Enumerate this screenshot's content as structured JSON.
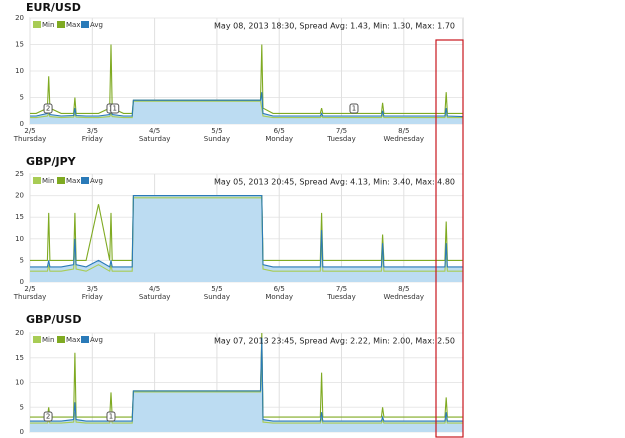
{
  "chart_data": [
    {
      "type": "line",
      "title": "EUR/USD",
      "info": "May 08, 2013 18:30, Spread Avg: 1.43, Min: 1.30, Max: 1.70",
      "fill_color": "#bcdcf2",
      "grid": true,
      "x": [
        0,
        0.1,
        0.28,
        0.3,
        0.32,
        0.5,
        0.7,
        0.72,
        0.74,
        0.9,
        1.1,
        1.28,
        1.3,
        1.32,
        1.5,
        1.64,
        1.66,
        3.7,
        3.72,
        3.74,
        3.9,
        4.2,
        4.5,
        4.66,
        4.68,
        4.7,
        5.0,
        5.3,
        5.64,
        5.66,
        5.68,
        6.0,
        6.3,
        6.66,
        6.68,
        6.7,
        6.95
      ],
      "xlim": [
        0,
        6.95
      ],
      "xticks": [
        {
          "value": 0,
          "label": "2/5"
        },
        {
          "value": 1,
          "label": "3/5"
        },
        {
          "value": 2,
          "label": "4/5"
        },
        {
          "value": 3,
          "label": "5/5"
        },
        {
          "value": 4,
          "label": "6/5"
        },
        {
          "value": 5,
          "label": "7/5"
        },
        {
          "value": 6,
          "label": "8/5"
        }
      ],
      "xtick_days": [
        "Thursday",
        "Friday",
        "Saturday",
        "Sunday",
        "Monday",
        "Tuesday",
        "Wednesday"
      ],
      "ylim": [
        0,
        20
      ],
      "yticks": [
        0,
        5,
        10,
        15,
        20
      ],
      "series": [
        {
          "name": "Min",
          "color": "#a8cc55",
          "values": [
            1.2,
            1.2,
            1.5,
            2,
            1.4,
            1.2,
            1.3,
            2,
            1.3,
            1.2,
            1.2,
            1.4,
            2,
            1.4,
            1.2,
            1.2,
            4.3,
            4.3,
            3,
            1.5,
            1.2,
            1.2,
            1.2,
            1.2,
            1.5,
            1.2,
            1.2,
            1.2,
            1.2,
            1.8,
            1.2,
            1.2,
            1.2,
            1.2,
            2,
            1.2,
            1.2
          ]
        },
        {
          "name": "Max",
          "color": "#7faa22",
          "values": [
            2,
            2,
            3,
            9,
            3,
            2,
            2,
            5,
            2,
            2,
            2,
            3,
            15,
            3,
            2,
            2,
            4.5,
            4.5,
            15,
            3,
            2,
            2,
            2,
            2,
            3,
            2,
            2,
            2,
            2,
            4,
            2,
            2,
            2,
            2,
            6,
            2,
            2
          ]
        },
        {
          "name": "Avg",
          "color": "#2a7ab8",
          "values": [
            1.5,
            1.5,
            2,
            3,
            1.8,
            1.5,
            1.6,
            3,
            1.6,
            1.5,
            1.5,
            1.8,
            3,
            1.8,
            1.5,
            1.5,
            4.5,
            4.5,
            6,
            2,
            1.5,
            1.5,
            1.5,
            1.5,
            2,
            1.5,
            1.5,
            1.5,
            1.5,
            2.5,
            1.5,
            1.5,
            1.5,
            1.5,
            3,
            1.5,
            1.4
          ]
        }
      ],
      "flags": [
        {
          "x": 0.29,
          "text": "2"
        },
        {
          "x": 1.3,
          "text": "1"
        },
        {
          "x": 1.36,
          "text": "1"
        },
        {
          "x": 5.2,
          "text": "1"
        }
      ]
    },
    {
      "type": "line",
      "title": "GBP/JPY",
      "info": "May 05, 2013 20:45, Spread Avg: 4.13, Min: 3.40, Max: 4.80",
      "fill_color": "#bcdcf2",
      "grid": true,
      "x": [
        0,
        0.1,
        0.28,
        0.3,
        0.32,
        0.5,
        0.7,
        0.72,
        0.74,
        0.9,
        1.1,
        1.28,
        1.3,
        1.32,
        1.5,
        1.64,
        1.66,
        3.7,
        3.72,
        3.74,
        3.9,
        4.2,
        4.5,
        4.66,
        4.68,
        4.7,
        5.0,
        5.3,
        5.64,
        5.66,
        5.68,
        6.0,
        6.3,
        6.66,
        6.68,
        6.7,
        6.95
      ],
      "xlim": [
        0,
        6.95
      ],
      "xticks": [
        {
          "value": 0,
          "label": "2/5"
        },
        {
          "value": 1,
          "label": "3/5"
        },
        {
          "value": 2,
          "label": "4/5"
        },
        {
          "value": 3,
          "label": "5/5"
        },
        {
          "value": 4,
          "label": "6/5"
        },
        {
          "value": 5,
          "label": "7/5"
        },
        {
          "value": 6,
          "label": "8/5"
        }
      ],
      "xtick_days": [
        "Thursday",
        "Friday",
        "Saturday",
        "Sunday",
        "Monday",
        "Tuesday",
        "Wednesday"
      ],
      "ylim": [
        0,
        25
      ],
      "yticks": [
        0,
        5,
        10,
        15,
        20,
        25
      ],
      "series": [
        {
          "name": "Min",
          "color": "#a8cc55",
          "values": [
            2.5,
            2.5,
            2.5,
            4,
            2.5,
            2.5,
            3,
            8,
            3,
            2.5,
            4,
            2.5,
            4,
            2.5,
            2.5,
            2.5,
            19.5,
            19.5,
            19.5,
            3,
            2.5,
            2.5,
            2.5,
            2.5,
            9,
            2.5,
            2.5,
            2.5,
            2.5,
            7,
            2.5,
            2.5,
            2.5,
            2.5,
            7,
            2.5,
            2.5
          ]
        },
        {
          "name": "Max",
          "color": "#7faa22",
          "values": [
            5,
            5,
            5,
            16,
            5,
            5,
            5,
            16,
            5,
            5,
            18,
            5,
            16,
            5,
            5,
            5,
            20,
            20,
            20,
            5,
            5,
            5,
            5,
            5,
            16,
            5,
            5,
            5,
            5,
            11,
            5,
            5,
            5,
            5,
            14,
            5,
            5
          ]
        },
        {
          "name": "Avg",
          "color": "#2a7ab8",
          "values": [
            3.5,
            3.5,
            3.5,
            5,
            3.5,
            3.5,
            4,
            10,
            4,
            3.5,
            5,
            3.5,
            5,
            3.5,
            3.5,
            3.5,
            20,
            20,
            20,
            4,
            3.5,
            3.5,
            3.5,
            3.5,
            12,
            3.5,
            3.5,
            3.5,
            3.5,
            9,
            3.5,
            3.5,
            3.5,
            3.5,
            9,
            3.5,
            3.5
          ]
        }
      ]
    },
    {
      "type": "line",
      "title": "GBP/USD",
      "info": "May 07, 2013 23:45, Spread Avg: 2.22, Min: 2.00, Max: 2.50",
      "fill_color": "#bcdcf2",
      "grid": true,
      "x": [
        0,
        0.1,
        0.28,
        0.3,
        0.32,
        0.5,
        0.7,
        0.72,
        0.74,
        0.9,
        1.1,
        1.28,
        1.3,
        1.32,
        1.5,
        1.64,
        1.66,
        3.7,
        3.72,
        3.74,
        3.9,
        4.2,
        4.5,
        4.66,
        4.68,
        4.7,
        5.0,
        5.3,
        5.64,
        5.66,
        5.68,
        6.0,
        6.3,
        6.66,
        6.68,
        6.7,
        6.95
      ],
      "xlim": [
        0,
        6.95
      ],
      "xticks": [
        0,
        1,
        2,
        3,
        4,
        5,
        6
      ],
      "ylim": [
        0,
        20
      ],
      "yticks": [
        0,
        5,
        10,
        15,
        20
      ],
      "series": [
        {
          "name": "Min",
          "color": "#a8cc55",
          "values": [
            1.8,
            1.8,
            1.8,
            2.4,
            1.8,
            1.8,
            2,
            4,
            2,
            1.8,
            1.8,
            1.8,
            3,
            1.8,
            1.8,
            1.8,
            8.1,
            8.1,
            17,
            2,
            1.8,
            1.8,
            1.8,
            1.8,
            3,
            1.8,
            1.8,
            1.8,
            1.8,
            2.4,
            1.8,
            1.8,
            1.8,
            1.8,
            3,
            1.8,
            1.8
          ]
        },
        {
          "name": "Max",
          "color": "#7faa22",
          "values": [
            3,
            3,
            3,
            5,
            3,
            3,
            3,
            16,
            3,
            3,
            3,
            3,
            8,
            3,
            3,
            3,
            8.3,
            8.3,
            20,
            3,
            3,
            3,
            3,
            3,
            12,
            3,
            3,
            3,
            3,
            5,
            3,
            3,
            3,
            3,
            7,
            3,
            3
          ]
        },
        {
          "name": "Avg",
          "color": "#2a7ab8",
          "values": [
            2.2,
            2.2,
            2.2,
            3,
            2.2,
            2.2,
            2.5,
            6,
            2.5,
            2.2,
            2.2,
            2.2,
            4,
            2.2,
            2.2,
            2.2,
            8.3,
            8.3,
            19,
            2.5,
            2.2,
            2.2,
            2.2,
            2.2,
            4,
            2.2,
            2.2,
            2.2,
            2.2,
            3,
            2.2,
            2.2,
            2.2,
            2.2,
            4,
            2.2,
            2.2
          ]
        }
      ],
      "flags": [
        {
          "x": 0.29,
          "text": "2"
        },
        {
          "x": 1.3,
          "text": "1"
        }
      ]
    }
  ]
}
